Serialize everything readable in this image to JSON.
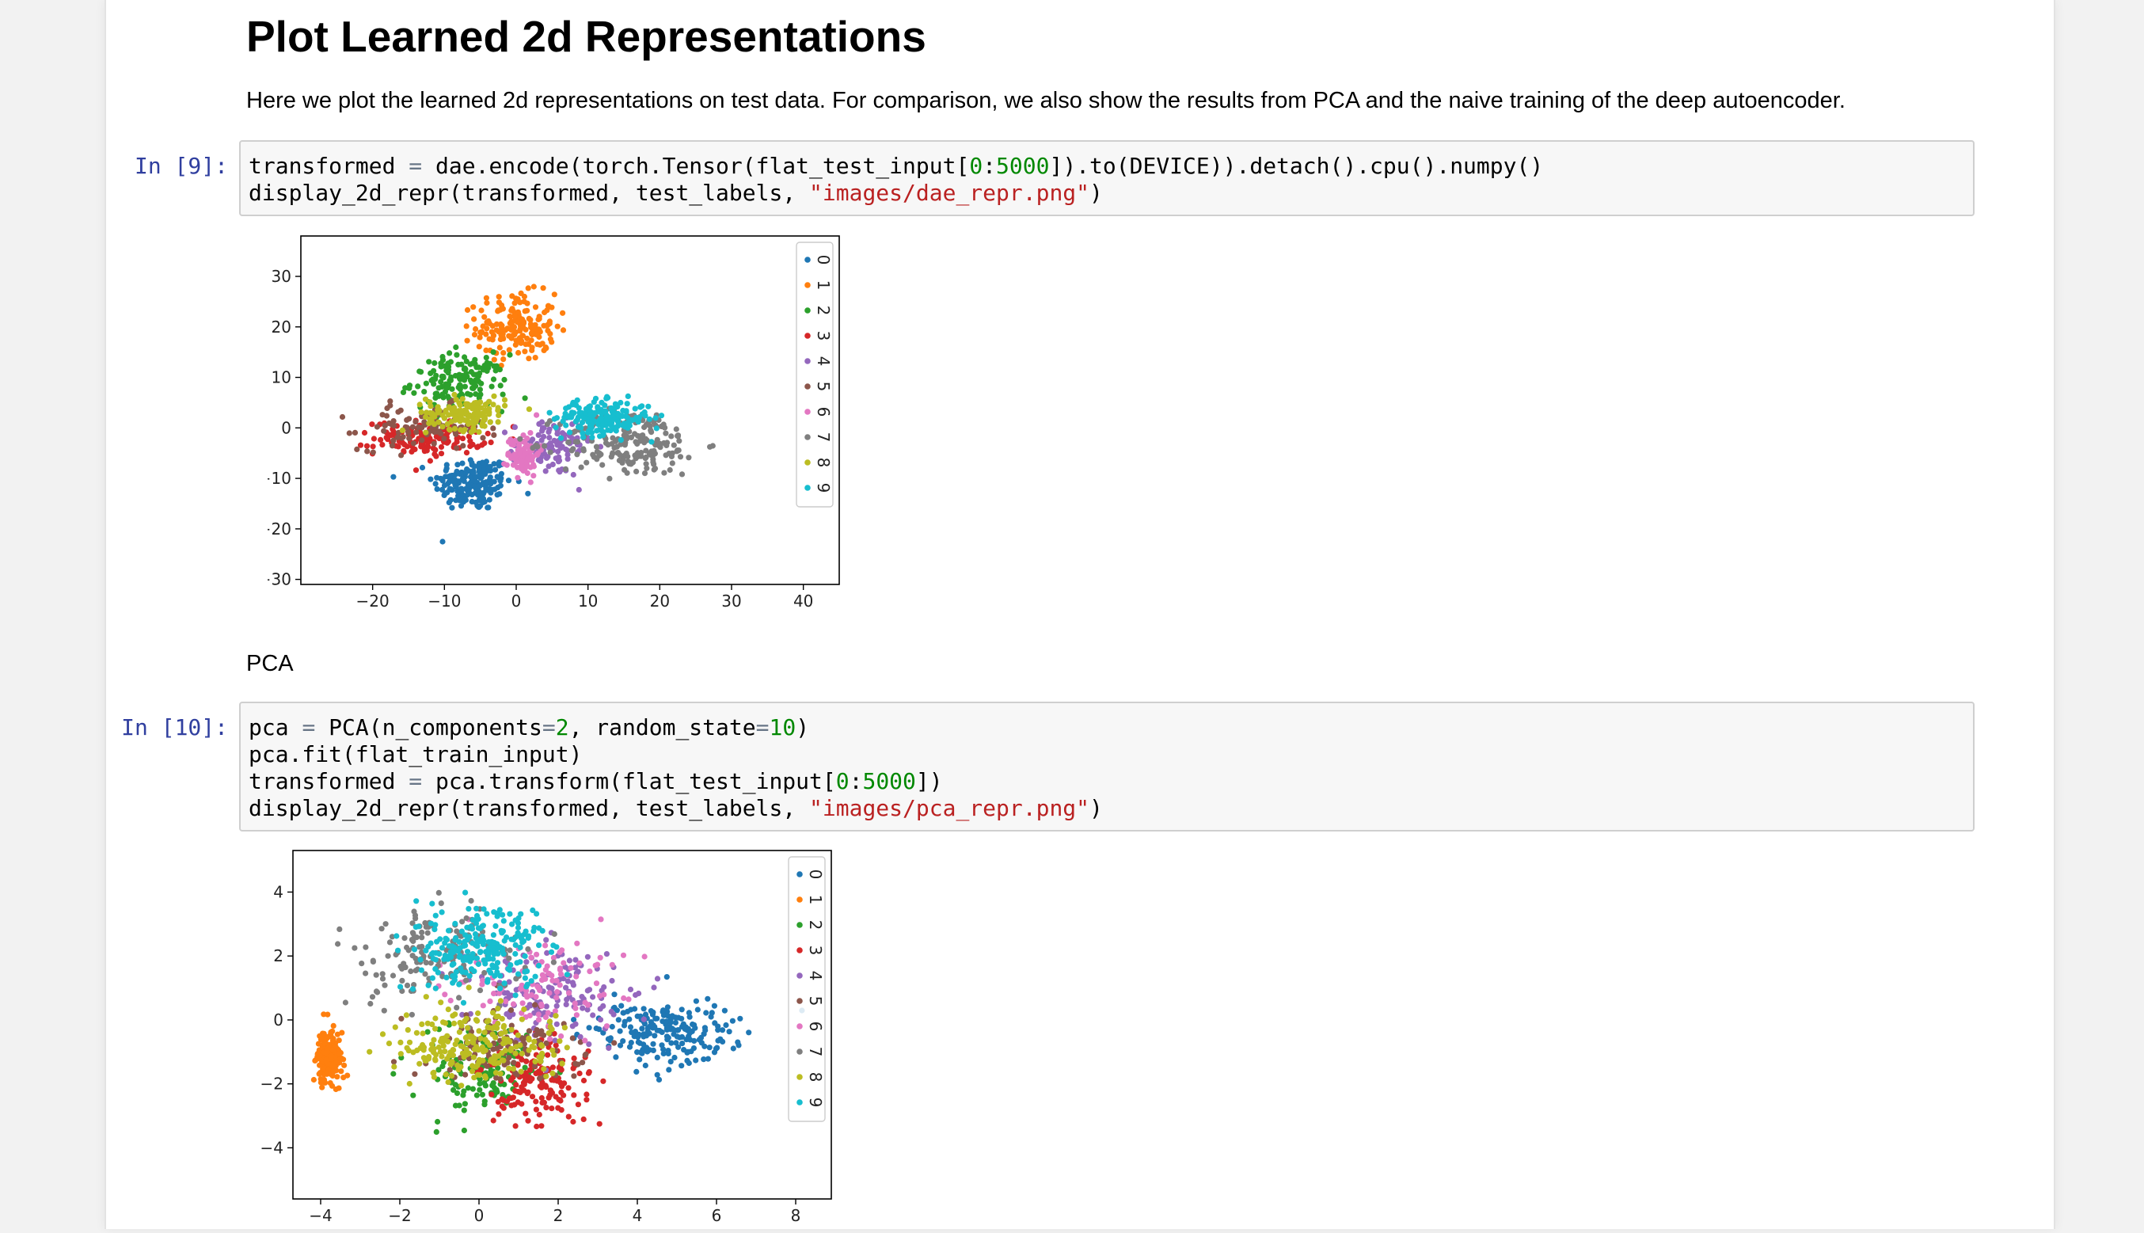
{
  "heading": "Plot Learned 2d Representations",
  "intro": "Here we plot the learned 2d representations on test data. For comparison, we also show the results from PCA and the naive training of the deep autoencoder.",
  "pca_heading": "PCA",
  "cells": [
    {
      "prompt": "In [9]:",
      "lines": [
        "transformed = dae.encode(torch.Tensor(flat_test_input[0:5000]).to(DEVICE)).detach().cpu().numpy()",
        "display_2d_repr(transformed, test_labels, \"images/dae_repr.png\")"
      ]
    },
    {
      "prompt": "In [10]:",
      "lines": [
        "pca = PCA(n_components=2, random_state=10)",
        "pca.fit(flat_train_input)",
        "transformed = pca.transform(flat_test_input[0:5000])",
        "display_2d_repr(transformed, test_labels, \"images/pca_repr.png\")"
      ]
    }
  ],
  "colors": [
    "#1f77b4",
    "#ff7f0e",
    "#2ca02c",
    "#d62728",
    "#9467bd",
    "#8c564b",
    "#e377c2",
    "#7f7f7f",
    "#bcbd22",
    "#17becf"
  ],
  "chart_data": [
    {
      "type": "scatter",
      "title": "",
      "xlabel": "",
      "ylabel": "",
      "xlim": [
        -30,
        45
      ],
      "ylim": [
        -31,
        38
      ],
      "xticks": [
        "−20",
        "−10",
        "0",
        "10",
        "20",
        "30",
        "40"
      ],
      "xtick_values": [
        -20,
        -10,
        0,
        10,
        20,
        30,
        40
      ],
      "yticks": [
        "30",
        "20",
        "10",
        "0",
        "−10",
        "−20",
        "−30"
      ],
      "ytick_values": [
        30,
        20,
        10,
        0,
        -10,
        -20,
        -30
      ],
      "legend": [
        "0",
        "1",
        "2",
        "3",
        "4",
        "5",
        "6",
        "7",
        "8",
        "9"
      ],
      "legend_position": "upper right",
      "series": [
        {
          "name": "0",
          "center": [
            -6,
            -11
          ],
          "spread": [
            5,
            5
          ],
          "points": 180
        },
        {
          "name": "1",
          "center": [
            0,
            20
          ],
          "spread": [
            5,
            6
          ],
          "points": 180
        },
        {
          "name": "2",
          "center": [
            -8,
            9
          ],
          "spread": [
            6,
            5
          ],
          "points": 150
        },
        {
          "name": "3",
          "center": [
            -12,
            -2
          ],
          "spread": [
            7,
            3
          ],
          "points": 140
        },
        {
          "name": "4",
          "center": [
            5,
            -4
          ],
          "spread": [
            5,
            5
          ],
          "points": 90
        },
        {
          "name": "5",
          "center": [
            -13,
            0
          ],
          "spread": [
            8,
            4
          ],
          "points": 90
        },
        {
          "name": "6",
          "center": [
            1,
            -5
          ],
          "spread": [
            2,
            4
          ],
          "points": 90
        },
        {
          "name": "7",
          "center": [
            16,
            -3
          ],
          "spread": [
            9,
            6
          ],
          "points": 200
        },
        {
          "name": "8",
          "center": [
            -7,
            3
          ],
          "spread": [
            5,
            3
          ],
          "points": 150
        },
        {
          "name": "9",
          "center": [
            12,
            2
          ],
          "spread": [
            6,
            3
          ],
          "points": 200
        }
      ]
    },
    {
      "type": "scatter",
      "title": "",
      "xlabel": "",
      "ylabel": "",
      "xlim": [
        -4.7,
        8.9
      ],
      "ylim": [
        -5.6,
        5.3
      ],
      "xticks": [
        "−4",
        "−2",
        "0",
        "2",
        "4",
        "6",
        "8"
      ],
      "xtick_values": [
        -4,
        -2,
        0,
        2,
        4,
        6,
        8
      ],
      "yticks": [
        "4",
        "2",
        "0",
        "−2",
        "−4"
      ],
      "ytick_values": [
        4,
        2,
        0,
        -2,
        -4
      ],
      "legend": [
        "0",
        "1",
        "2",
        "3",
        "4",
        "5",
        "6",
        "7",
        "8",
        "9"
      ],
      "legend_position": "upper right",
      "series": [
        {
          "name": "0",
          "center": [
            4.6,
            -0.4
          ],
          "spread": [
            1.6,
            0.9
          ],
          "points": 200
        },
        {
          "name": "1",
          "center": [
            -3.8,
            -1.2
          ],
          "spread": [
            0.3,
            0.8
          ],
          "points": 170
        },
        {
          "name": "2",
          "center": [
            0,
            -1.5
          ],
          "spread": [
            1.6,
            1.3
          ],
          "points": 130
        },
        {
          "name": "3",
          "center": [
            1.5,
            -2
          ],
          "spread": [
            1.3,
            1.2
          ],
          "points": 150
        },
        {
          "name": "4",
          "center": [
            1.8,
            0.8
          ],
          "spread": [
            1.8,
            1.4
          ],
          "points": 150
        },
        {
          "name": "5",
          "center": [
            0.8,
            -0.8
          ],
          "spread": [
            1.8,
            1.1
          ],
          "points": 110
        },
        {
          "name": "6",
          "center": [
            1.5,
            1
          ],
          "spread": [
            1.9,
            1.4
          ],
          "points": 110
        },
        {
          "name": "7",
          "center": [
            -1,
            2
          ],
          "spread": [
            1.8,
            1.3
          ],
          "points": 160
        },
        {
          "name": "8",
          "center": [
            0,
            -0.8
          ],
          "spread": [
            2,
            1
          ],
          "points": 220
        },
        {
          "name": "9",
          "center": [
            0,
            2.2
          ],
          "spread": [
            1.7,
            1.2
          ],
          "points": 230
        }
      ]
    }
  ]
}
